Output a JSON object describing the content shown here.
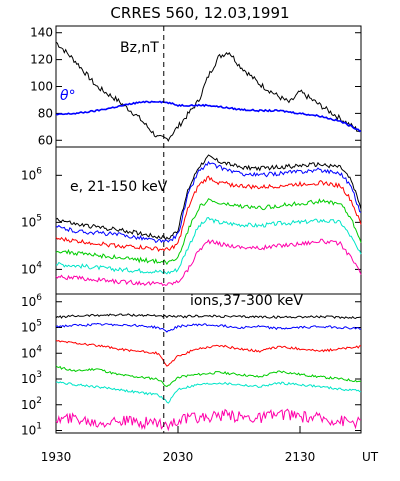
{
  "title": "CRRES 560, 12.03,1991",
  "x_axis": {
    "ticks": [
      "1930",
      "2030",
      "2130"
    ],
    "unit": "UT",
    "range": [
      "19:30",
      "22:00"
    ]
  },
  "event_marker": "20:23",
  "chart_data": [
    {
      "type": "line",
      "panel": "magnetic field",
      "annotations": [
        "Bz,nT",
        "θ°"
      ],
      "ylim": [
        55,
        145
      ],
      "yticks": [
        "60",
        "80",
        "100",
        "120",
        "140"
      ],
      "x": [
        "19:30",
        "19:40",
        "19:50",
        "20:00",
        "20:10",
        "20:20",
        "20:25",
        "20:30",
        "20:40",
        "20:45",
        "20:50",
        "20:55",
        "21:00",
        "21:10",
        "21:20",
        "21:25",
        "21:30",
        "21:40",
        "21:50",
        "22:00"
      ],
      "series": [
        {
          "color": "#000000",
          "values": [
            133,
            118,
            100,
            90,
            78,
            62,
            61,
            70,
            89,
            108,
            122,
            126,
            116,
            102,
            92,
            88,
            96,
            86,
            76,
            66
          ]
        },
        {
          "color": "#0000ff",
          "values": [
            79,
            80,
            82,
            85,
            88,
            89,
            88,
            86,
            86,
            86,
            85,
            84,
            83,
            82,
            82,
            81,
            80,
            78,
            74,
            67
          ]
        }
      ]
    },
    {
      "type": "line",
      "panel": "electrons",
      "annotations": [
        "e, 21-150 keV"
      ],
      "yscale": "log",
      "ylim": [
        3000,
        4000000
      ],
      "yticks": [
        "10^4",
        "10^5",
        "10^6"
      ],
      "x": [
        "19:30",
        "19:40",
        "19:50",
        "20:00",
        "20:10",
        "20:20",
        "20:25",
        "20:30",
        "20:35",
        "20:40",
        "20:45",
        "20:50",
        "21:00",
        "21:10",
        "21:20",
        "21:30",
        "21:40",
        "21:50",
        "21:55",
        "22:00"
      ],
      "series": [
        {
          "color": "#000000",
          "values": [
            120000,
            90000,
            80000,
            70000,
            60000,
            50000,
            45000,
            70000,
            500000,
            1500000,
            2500000,
            2000000,
            1500000,
            1400000,
            1500000,
            1600000,
            1700000,
            1500000,
            800000,
            200000
          ]
        },
        {
          "color": "#0000ff",
          "values": [
            80000,
            65000,
            60000,
            55000,
            48000,
            40000,
            38000,
            55000,
            400000,
            1200000,
            1800000,
            1500000,
            1100000,
            1000000,
            1100000,
            1200000,
            1300000,
            1100000,
            600000,
            150000
          ]
        },
        {
          "color": "#ff0000",
          "values": [
            45000,
            40000,
            36000,
            32000,
            30000,
            27000,
            26000,
            35000,
            200000,
            600000,
            900000,
            700000,
            600000,
            550000,
            600000,
            650000,
            700000,
            600000,
            300000,
            90000
          ]
        },
        {
          "color": "#00cc00",
          "values": [
            25000,
            22000,
            20000,
            18000,
            16000,
            15000,
            14000,
            18000,
            70000,
            200000,
            300000,
            250000,
            220000,
            200000,
            230000,
            250000,
            280000,
            250000,
            120000,
            40000
          ]
        },
        {
          "color": "#00e5c8",
          "values": [
            13000,
            12000,
            11000,
            10000,
            9500,
            9000,
            8500,
            10000,
            30000,
            80000,
            120000,
            100000,
            90000,
            85000,
            95000,
            100000,
            110000,
            100000,
            50000,
            20000
          ]
        },
        {
          "color": "#ff00aa",
          "values": [
            7000,
            6500,
            6000,
            5500,
            5200,
            5000,
            4800,
            5500,
            10000,
            25000,
            40000,
            35000,
            30000,
            28000,
            32000,
            35000,
            40000,
            35000,
            18000,
            8000
          ]
        }
      ]
    },
    {
      "type": "line",
      "panel": "ions",
      "annotations": [
        "ions,37-300 keV"
      ],
      "yscale": "log",
      "ylim": [
        8,
        2000000
      ],
      "yticks": [
        "10^1",
        "10^2",
        "10^3",
        "10^4",
        "10^5",
        "10^6"
      ],
      "x": [
        "19:30",
        "19:40",
        "19:50",
        "20:00",
        "20:10",
        "20:20",
        "20:25",
        "20:30",
        "20:40",
        "20:50",
        "21:00",
        "21:10",
        "21:20",
        "21:30",
        "21:40",
        "21:50",
        "22:00"
      ],
      "series": [
        {
          "color": "#000000",
          "values": [
            250000,
            280000,
            300000,
            310000,
            300000,
            290000,
            270000,
            260000,
            280000,
            270000,
            260000,
            260000,
            250000,
            260000,
            260000,
            250000,
            240000
          ]
        },
        {
          "color": "#0000ff",
          "values": [
            110000,
            120000,
            130000,
            130000,
            120000,
            100000,
            70000,
            110000,
            130000,
            120000,
            100000,
            110000,
            90000,
            100000,
            110000,
            100000,
            90000
          ]
        },
        {
          "color": "#ff0000",
          "values": [
            30000,
            25000,
            20000,
            15000,
            12000,
            10000,
            3000,
            8000,
            15000,
            20000,
            15000,
            12000,
            18000,
            15000,
            12000,
            15000,
            18000
          ]
        },
        {
          "color": "#00cc00",
          "values": [
            3000,
            2000,
            2500,
            1500,
            1200,
            1000,
            500,
            1200,
            1500,
            1800,
            1500,
            1200,
            2000,
            1500,
            1200,
            1000,
            800
          ]
        },
        {
          "color": "#00e5c8",
          "values": [
            800,
            600,
            500,
            400,
            300,
            250,
            120,
            400,
            600,
            700,
            600,
            500,
            700,
            600,
            500,
            400,
            350
          ]
        },
        {
          "color": "#ff00aa",
          "values": [
            25,
            30,
            20,
            25,
            20,
            22,
            15,
            25,
            30,
            40,
            35,
            30,
            45,
            35,
            30,
            25,
            20
          ]
        }
      ]
    }
  ]
}
